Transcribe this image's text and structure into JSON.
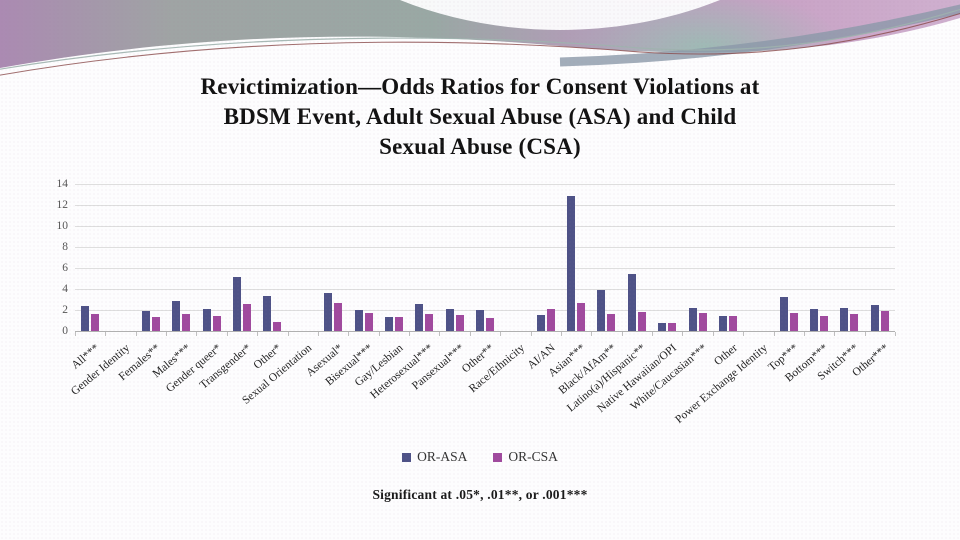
{
  "slide": {
    "title_lines": [
      "Revictimization—Odds Ratios for Consent Violations at",
      "BDSM Event, Adult Sexual Abuse (ASA) and Child",
      "Sexual Abuse (CSA)"
    ],
    "footnote": "Significant at .05*, .01**, or .001***"
  },
  "chart_data": {
    "type": "bar",
    "title": "Revictimization—Odds Ratios for Consent Violations at BDSM Event, Adult Sexual Abuse (ASA) and Child Sexual Abuse (CSA)",
    "xlabel": "",
    "ylabel": "",
    "ylim": [
      0,
      14
    ],
    "ytick_step": 2,
    "grid": true,
    "legend_position": "bottom",
    "categories": [
      "All***",
      "Gender Identity",
      "Females**",
      "Males***",
      "Gender queer*",
      "Transgender*",
      "Other*",
      "Sexual Orientation",
      "Asexual*",
      "Bisexual***",
      "Gay/Lesbian",
      "Heterosexual***",
      "Pansexual***",
      "Other**",
      "Race/Ethnicity",
      "AI/AN",
      "Asian***",
      "Black/AfAm**",
      "Latino(a)/Hispanic**",
      "Native Hawaiian/OPI",
      "White/Caucasian***",
      "Other",
      "Power Exchange Identity",
      "Top***",
      "Bottom***",
      "Switch***",
      "Other***"
    ],
    "series": [
      {
        "name": "OR-ASA",
        "color": "#4e5287",
        "values": [
          2.4,
          null,
          1.9,
          2.9,
          2.1,
          5.1,
          3.3,
          null,
          3.6,
          2.0,
          1.3,
          2.6,
          2.1,
          2.0,
          null,
          1.5,
          12.9,
          3.9,
          5.4,
          0.8,
          2.2,
          1.4,
          null,
          3.2,
          2.1,
          2.2,
          2.5
        ]
      },
      {
        "name": "OR-CSA",
        "color": "#a04a9e",
        "values": [
          1.6,
          null,
          1.3,
          1.6,
          1.4,
          2.6,
          0.9,
          null,
          2.7,
          1.7,
          1.3,
          1.6,
          1.5,
          1.2,
          null,
          2.1,
          2.7,
          1.6,
          1.8,
          0.8,
          1.7,
          1.4,
          null,
          1.7,
          1.4,
          1.6,
          1.9
        ]
      }
    ]
  }
}
